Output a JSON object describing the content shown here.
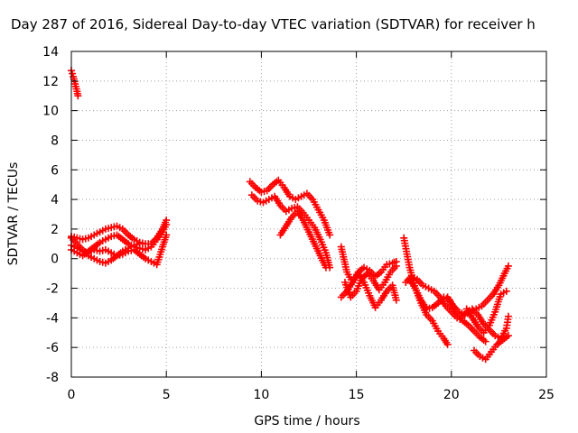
{
  "chart_data": {
    "type": "scatter",
    "title": "Day 287 of 2016, Sidereal Day-to-day VTEC variation (SDTVAR) for receiver h",
    "xlabel": "GPS time / hours",
    "ylabel": "SDTVAR / TECUs",
    "xlim": [
      0,
      25
    ],
    "ylim": [
      -8,
      14
    ],
    "x_ticks": [
      "0",
      "5",
      "10",
      "15",
      "20",
      "25"
    ],
    "y_ticks": [
      "-8",
      "-6",
      "-4",
      "-2",
      "0",
      "2",
      "4",
      "6",
      "8",
      "10",
      "12",
      "14"
    ],
    "grid": true,
    "marker": "+",
    "series_color": "#ff0000",
    "segments": [
      {
        "x": [
          0.0,
          0.1,
          0.2,
          0.3,
          0.35
        ],
        "y": [
          12.7,
          12.3,
          11.8,
          11.3,
          11.0
        ]
      },
      {
        "x": [
          0.0,
          0.3,
          0.6,
          0.9,
          1.2,
          1.5,
          1.8,
          2.1,
          2.4,
          2.7,
          3.0,
          3.3,
          3.6,
          3.9,
          4.2,
          4.5,
          4.8,
          5.0
        ],
        "y": [
          1.5,
          1.4,
          1.3,
          1.4,
          1.6,
          1.8,
          2.0,
          2.1,
          2.2,
          2.0,
          1.6,
          1.3,
          1.1,
          1.0,
          1.0,
          1.4,
          2.0,
          2.6
        ]
      },
      {
        "x": [
          0.0,
          0.3,
          0.6,
          0.9,
          1.2,
          1.5,
          1.8,
          2.1,
          2.4,
          2.7,
          3.0,
          3.3,
          3.6,
          3.9,
          4.2,
          4.5,
          4.8,
          5.0
        ],
        "y": [
          0.6,
          0.4,
          0.2,
          0.5,
          0.8,
          1.1,
          1.3,
          1.5,
          1.6,
          1.3,
          1.0,
          0.8,
          0.7,
          0.6,
          0.8,
          1.3,
          1.8,
          2.3
        ]
      },
      {
        "x": [
          0.0,
          0.3,
          0.6,
          0.9,
          1.2,
          1.5,
          1.8,
          2.1,
          2.4,
          2.7,
          3.0,
          3.3,
          3.6,
          3.9,
          4.2,
          4.5,
          4.8,
          5.0
        ],
        "y": [
          0.9,
          0.7,
          0.5,
          0.4,
          0.6,
          0.5,
          0.6,
          0.4,
          0.2,
          0.3,
          0.5,
          0.6,
          0.3,
          0.0,
          -0.2,
          -0.4,
          0.8,
          1.6
        ]
      },
      {
        "x": [
          0.0,
          0.3,
          0.6,
          0.9,
          1.2,
          1.5,
          1.8,
          2.1,
          2.4,
          2.7,
          3.0,
          3.3,
          3.6
        ],
        "y": [
          1.4,
          1.0,
          0.6,
          0.2,
          0.0,
          -0.2,
          -0.3,
          -0.1,
          0.2,
          0.5,
          0.7,
          0.9,
          1.0
        ]
      },
      {
        "x": [
          9.4,
          9.7,
          10.0,
          10.3,
          10.6,
          10.9,
          11.2,
          11.5,
          11.8,
          12.1,
          12.4,
          12.7,
          13.0,
          13.3,
          13.6
        ],
        "y": [
          5.2,
          4.8,
          4.5,
          4.6,
          5.0,
          5.3,
          4.8,
          4.2,
          4.0,
          4.2,
          4.4,
          4.0,
          3.3,
          2.6,
          1.6
        ]
      },
      {
        "x": [
          9.5,
          9.8,
          10.1,
          10.4,
          10.7,
          11.0,
          11.3,
          11.6,
          11.9,
          12.2,
          12.5,
          12.8,
          13.1,
          13.4,
          13.6
        ],
        "y": [
          4.3,
          3.9,
          3.8,
          4.0,
          4.2,
          3.6,
          3.2,
          3.4,
          3.5,
          3.1,
          2.6,
          2.1,
          1.3,
          0.4,
          -0.6
        ]
      },
      {
        "x": [
          11.0,
          11.3,
          11.6,
          11.9,
          12.2,
          12.5,
          12.8,
          13.1,
          13.4
        ],
        "y": [
          1.6,
          2.2,
          2.8,
          3.2,
          2.6,
          1.8,
          1.0,
          0.2,
          -0.6
        ]
      },
      {
        "x": [
          14.2,
          14.5,
          14.8,
          15.1,
          15.4,
          15.7,
          16.0,
          16.3,
          16.6,
          16.9,
          17.1
        ],
        "y": [
          0.8,
          -0.9,
          -1.6,
          -0.9,
          -0.6,
          -0.8,
          -1.2,
          -0.9,
          -0.4,
          -0.3,
          -0.2
        ]
      },
      {
        "x": [
          14.2,
          14.5,
          14.8,
          15.1,
          15.4,
          15.7,
          16.0,
          16.3,
          16.6,
          16.9,
          17.1
        ],
        "y": [
          -2.6,
          -2.2,
          -1.6,
          -1.0,
          -1.6,
          -2.5,
          -3.3,
          -2.8,
          -2.2,
          -1.8,
          -2.8
        ]
      },
      {
        "x": [
          14.4,
          14.7,
          15.0,
          15.3,
          15.6,
          15.9,
          16.2,
          16.5,
          16.8,
          17.1
        ],
        "y": [
          -1.6,
          -2.6,
          -2.2,
          -1.3,
          -1.0,
          -1.5,
          -2.1,
          -1.6,
          -0.9,
          -0.5
        ]
      },
      {
        "x": [
          17.5,
          17.8,
          18.1,
          18.4,
          18.7,
          19.0,
          19.3,
          19.6,
          19.8
        ],
        "y": [
          1.4,
          -0.6,
          -2.0,
          -3.0,
          -3.8,
          -4.2,
          -4.9,
          -5.4,
          -5.8
        ]
      },
      {
        "x": [
          17.6,
          17.9,
          18.2,
          18.5,
          18.8,
          19.1,
          19.4,
          19.7,
          20.0,
          20.3,
          20.6,
          20.9,
          21.2,
          21.5,
          21.8
        ],
        "y": [
          -1.6,
          -1.2,
          -1.4,
          -1.8,
          -2.0,
          -2.2,
          -2.6,
          -3.2,
          -3.6,
          -4.0,
          -4.2,
          -4.5,
          -4.9,
          -5.3,
          -5.6
        ]
      },
      {
        "x": [
          17.8,
          18.1,
          18.4,
          18.7,
          19.0,
          19.3,
          19.6,
          19.9,
          20.2,
          20.5,
          20.8,
          21.1,
          21.4,
          21.7
        ],
        "y": [
          -1.4,
          -2.0,
          -2.8,
          -3.4,
          -3.3,
          -3.0,
          -2.6,
          -2.8,
          -3.6,
          -4.0,
          -3.6,
          -3.4,
          -3.8,
          -4.4
        ]
      },
      {
        "x": [
          19.8,
          20.1,
          20.4,
          20.7,
          21.0,
          21.3,
          21.6,
          21.9,
          22.2,
          22.5,
          22.8,
          23.0
        ],
        "y": [
          -2.6,
          -3.2,
          -3.6,
          -3.8,
          -3.6,
          -3.4,
          -3.2,
          -2.8,
          -2.4,
          -1.8,
          -1.0,
          -0.5
        ]
      },
      {
        "x": [
          20.8,
          21.1,
          21.4,
          21.7,
          22.0,
          22.3,
          22.6,
          22.9
        ],
        "y": [
          -3.4,
          -4.0,
          -4.6,
          -5.0,
          -4.5,
          -3.6,
          -2.4,
          -2.2
        ]
      },
      {
        "x": [
          21.2,
          21.5,
          21.8,
          22.1,
          22.4,
          22.7,
          23.0
        ],
        "y": [
          -6.2,
          -6.6,
          -6.8,
          -6.3,
          -5.8,
          -5.5,
          -5.2
        ]
      },
      {
        "x": [
          21.7,
          22.0,
          22.3,
          22.6,
          22.9,
          23.0
        ],
        "y": [
          -4.4,
          -4.8,
          -5.2,
          -5.4,
          -4.7,
          -3.9
        ]
      }
    ]
  }
}
